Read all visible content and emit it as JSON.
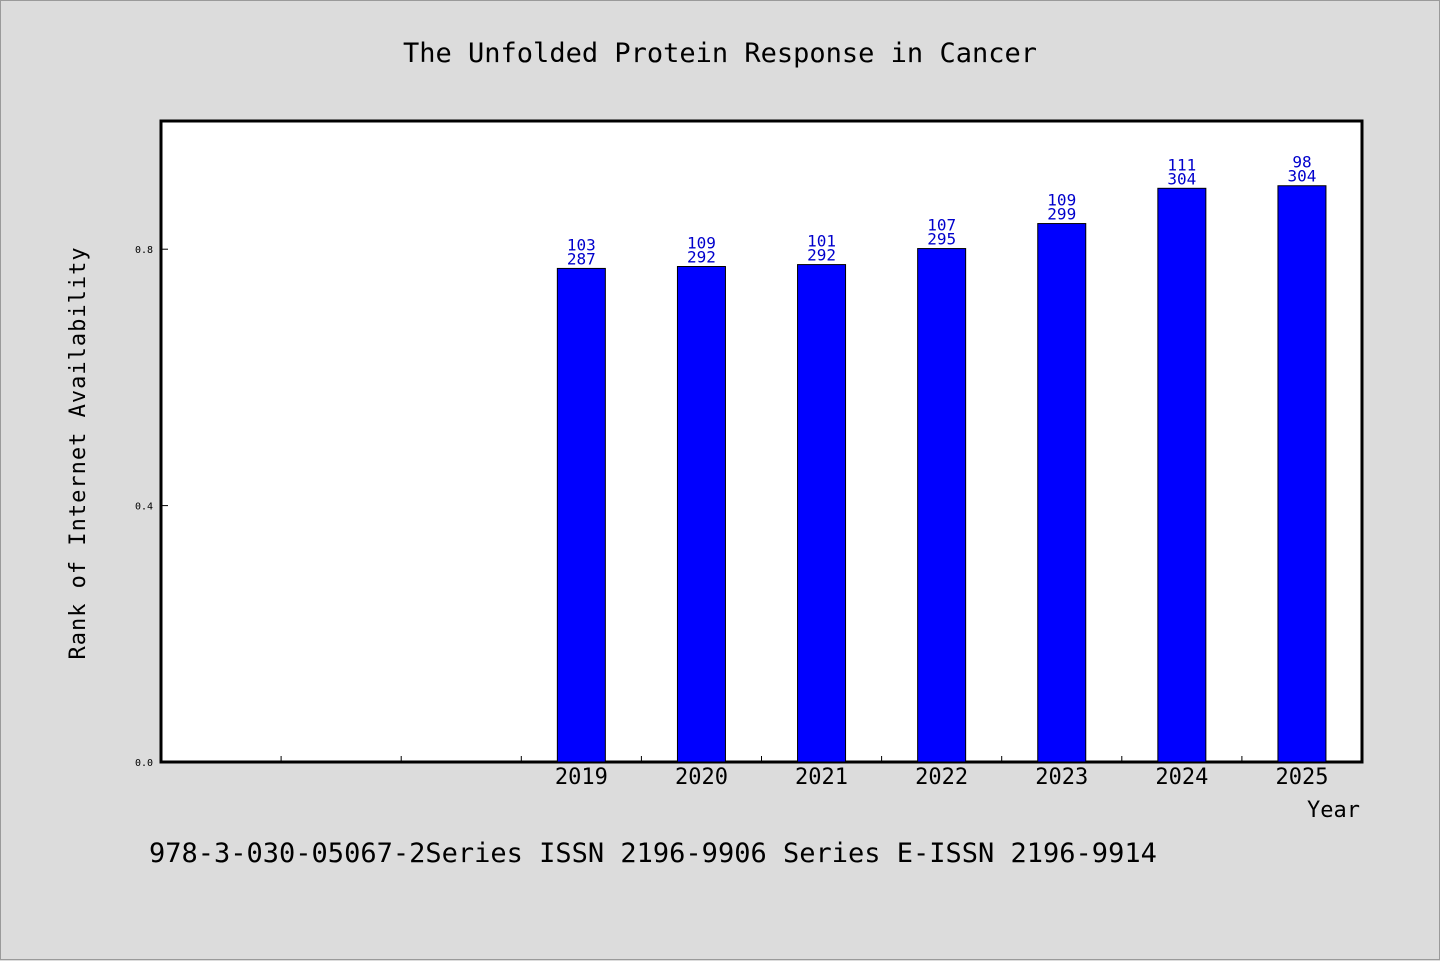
{
  "chart_data": {
    "type": "bar",
    "title": "The Unfolded Protein Response in Cancer",
    "xlabel": "Year",
    "ylabel": "Rank of Internet Availability",
    "categories": [
      "",
      "",
      "",
      "2019",
      "2020",
      "2021",
      "2022",
      "2023",
      "2024",
      "2025"
    ],
    "values": [
      null,
      null,
      null,
      0.77,
      0.773,
      0.776,
      0.801,
      0.84,
      0.895,
      0.899
    ],
    "bar_labels": [
      null,
      null,
      null,
      [
        "103",
        "287"
      ],
      [
        "109",
        "292"
      ],
      [
        "101",
        "292"
      ],
      [
        "107",
        "295"
      ],
      [
        "109",
        "299"
      ],
      [
        "111",
        "304"
      ],
      [
        "98",
        "304"
      ]
    ],
    "yticks": [
      0.0,
      0.4,
      0.8
    ],
    "ytick_labels": [
      "0.0",
      "0.4",
      "0.8"
    ],
    "ylim": [
      0,
      1.0
    ],
    "bar_color": "#0000ff",
    "label_color": "#0000cc",
    "grid": false,
    "legend": "none"
  },
  "footer": "978-3-030-05067-2Series ISSN 2196-9906 Series E-ISSN 2196-9914"
}
